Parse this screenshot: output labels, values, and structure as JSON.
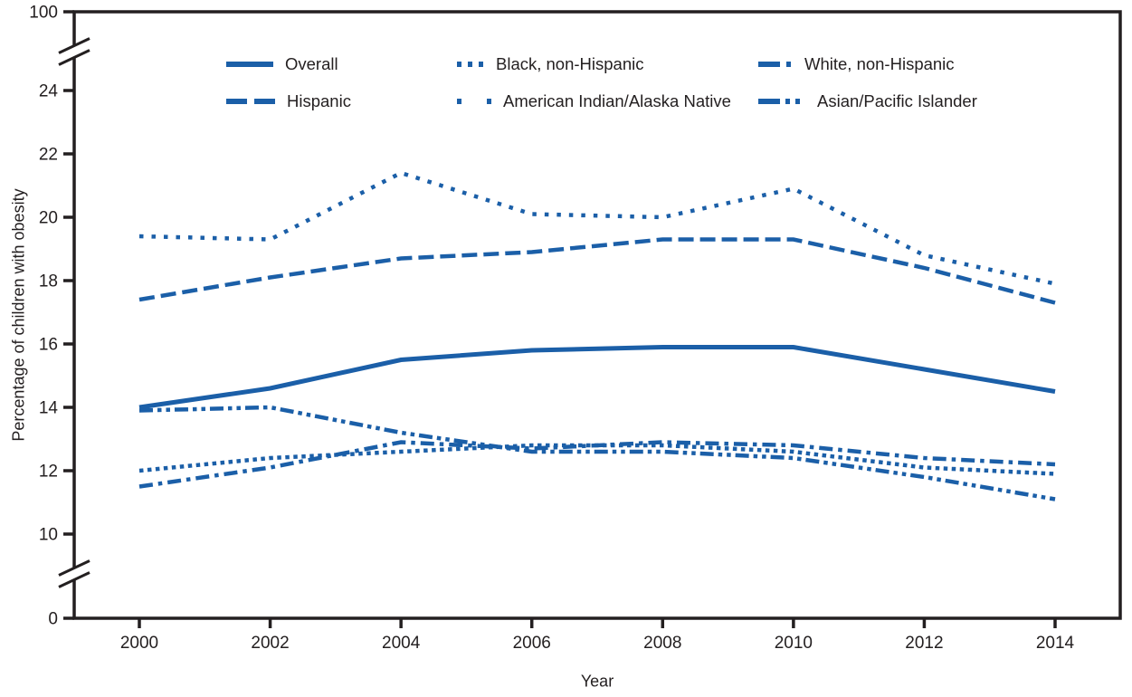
{
  "figure": {
    "y_axis_title": "Percentage of children with obesity",
    "x_axis_title": "Year",
    "line_color": "#1B5FA8",
    "axis_color": "#231F20",
    "background_color": "#FFFFFF",
    "y_tick_labels": [
      0,
      10,
      12,
      14,
      16,
      18,
      20,
      22,
      24,
      100
    ],
    "x_tick_labels": [
      2000,
      2002,
      2004,
      2006,
      2008,
      2010,
      2012,
      2014
    ]
  },
  "chart_data": {
    "type": "line",
    "title": "",
    "xlabel": "Year",
    "ylabel": "Percentage of children with obesity",
    "x": [
      2000,
      2002,
      2004,
      2006,
      2008,
      2010,
      2012,
      2014
    ],
    "xlim": [
      2000,
      2014
    ],
    "ylim_displayed_segment": [
      10,
      24
    ],
    "axis_breaks": [
      [
        0,
        10
      ],
      [
        24,
        100
      ]
    ],
    "grid": false,
    "legend_position": "top",
    "series": [
      {
        "name": "Overall",
        "line_style": "solid",
        "values": [
          14.0,
          14.6,
          15.5,
          15.8,
          15.9,
          15.9,
          15.2,
          14.5
        ]
      },
      {
        "name": "Hispanic",
        "line_style": "dashed",
        "values": [
          17.4,
          18.1,
          18.7,
          18.9,
          19.3,
          19.3,
          18.4,
          17.3
        ]
      },
      {
        "name": "Black, non-Hispanic",
        "line_style": "dotted",
        "values": [
          12.0,
          12.4,
          12.6,
          12.8,
          12.8,
          12.6,
          12.1,
          11.9
        ]
      },
      {
        "name": "American Indian/Alaska Native",
        "line_style": "sparse-dotted",
        "values": [
          19.4,
          19.3,
          21.4,
          20.1,
          20.0,
          20.9,
          18.8,
          17.9
        ]
      },
      {
        "name": "White, non-Hispanic",
        "line_style": "dash-dot",
        "values": [
          11.5,
          12.1,
          12.9,
          12.7,
          12.9,
          12.8,
          12.4,
          12.2
        ]
      },
      {
        "name": "Asian/Pacific Islander",
        "line_style": "dash-dot-dot",
        "values": [
          13.9,
          14.0,
          13.2,
          12.6,
          12.6,
          12.4,
          11.8,
          11.1
        ]
      }
    ]
  }
}
